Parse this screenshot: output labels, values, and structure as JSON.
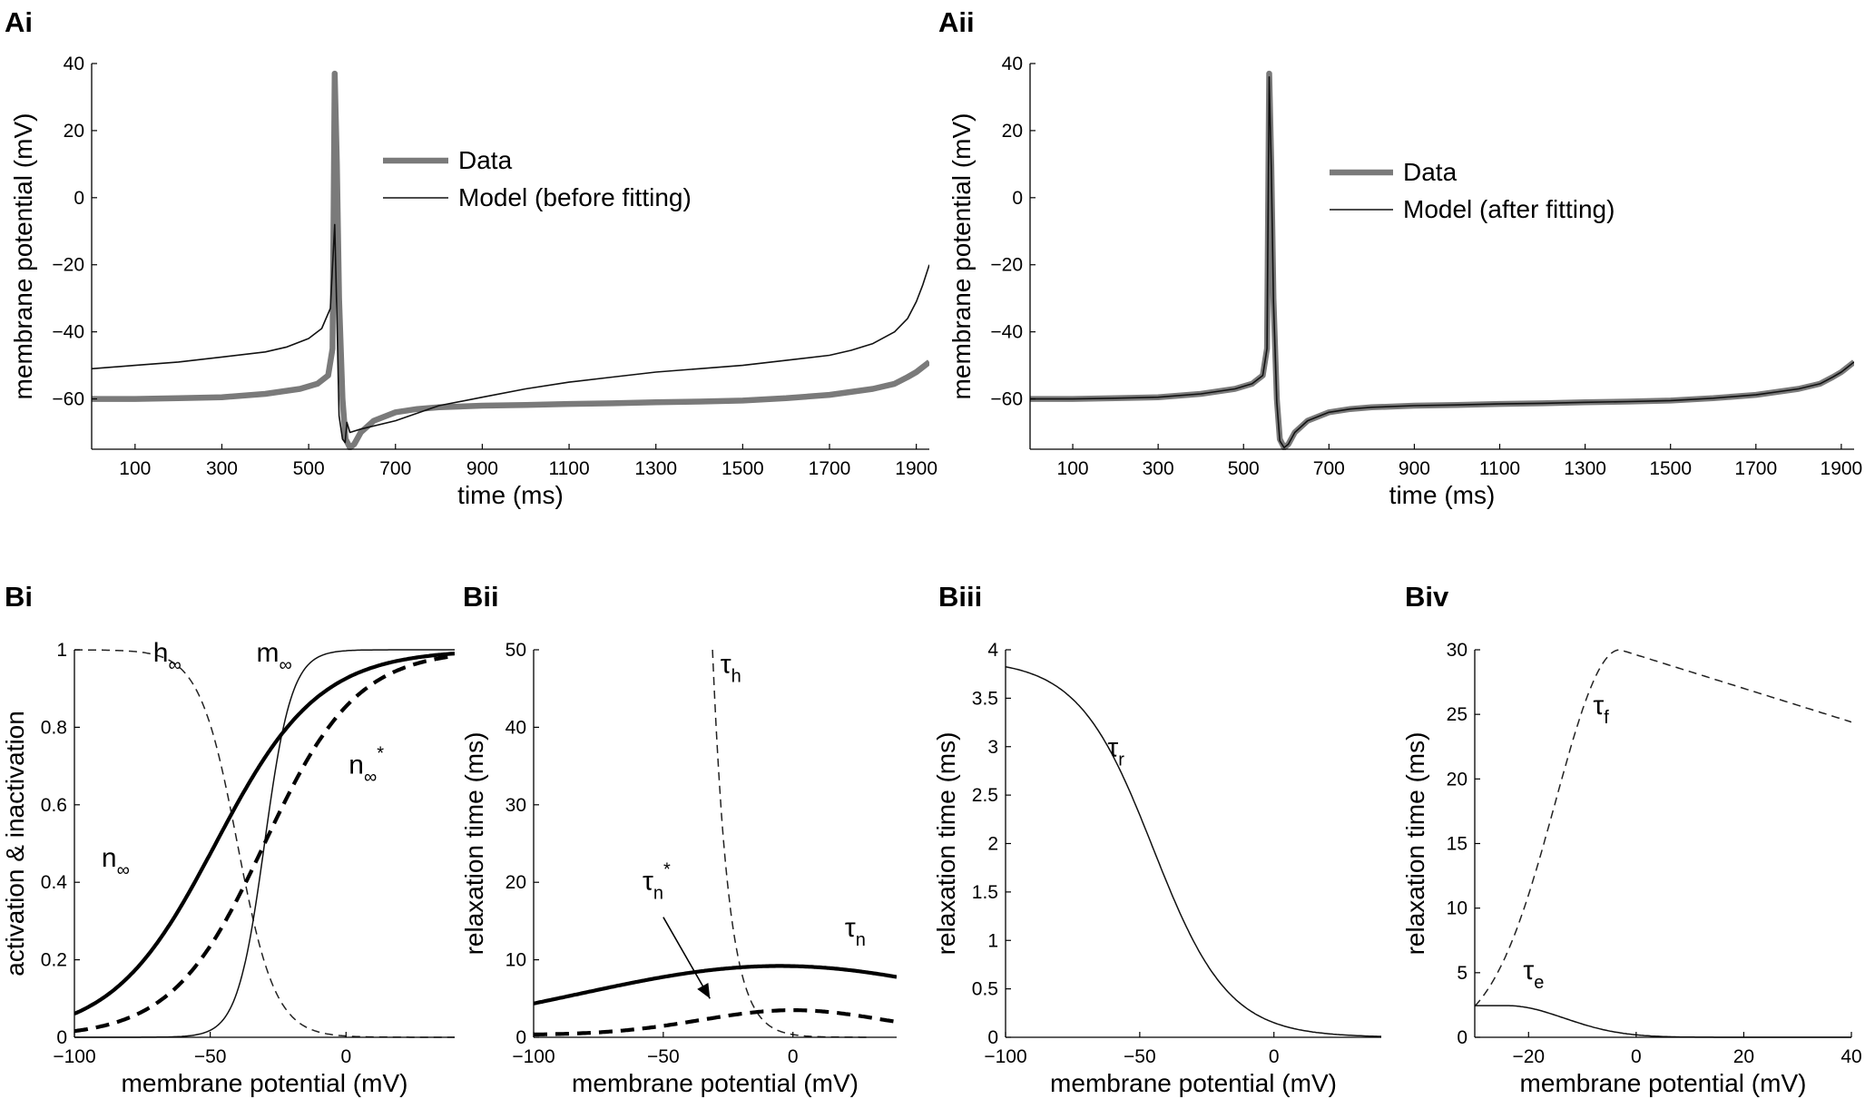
{
  "chart_data": [
    {
      "id": "Ai",
      "panel_label": "Ai",
      "type": "line",
      "xlabel": "time (ms)",
      "ylabel": "membrane potential (mV)",
      "xlim": [
        0,
        1930
      ],
      "ylim": [
        -75,
        40
      ],
      "xticks": [
        100,
        300,
        500,
        700,
        900,
        1100,
        1300,
        1500,
        1700,
        1900
      ],
      "yticks": [
        -60,
        -40,
        -20,
        0,
        20,
        40
      ],
      "legend": [
        "Data",
        "Model (before fitting)"
      ],
      "legend_position": "upper-middle",
      "series": [
        {
          "name": "Data",
          "style": "thick-gray",
          "x": [
            0,
            100,
            200,
            300,
            400,
            480,
            520,
            545,
            555,
            560,
            565,
            570,
            578,
            585,
            595,
            605,
            620,
            650,
            700,
            750,
            800,
            900,
            1000,
            1100,
            1200,
            1300,
            1400,
            1500,
            1600,
            1700,
            1800,
            1850,
            1880,
            1900,
            1915,
            1930
          ],
          "y": [
            -60,
            -60,
            -59.8,
            -59.5,
            -58.5,
            -57,
            -55.5,
            -53,
            -45,
            37,
            10,
            -30,
            -60,
            -72,
            -74.5,
            -73.5,
            -70,
            -66.5,
            -64,
            -63,
            -62.5,
            -62,
            -61.8,
            -61.5,
            -61.3,
            -61,
            -60.8,
            -60.5,
            -59.8,
            -58.8,
            -57,
            -55.5,
            -53.5,
            -52,
            -50.5,
            -49
          ]
        },
        {
          "name": "Model (before fitting)",
          "style": "thin-black",
          "x": [
            0,
            100,
            200,
            300,
            400,
            450,
            500,
            530,
            550,
            560,
            565,
            570,
            578,
            584,
            588,
            595,
            620,
            700,
            800,
            900,
            1000,
            1100,
            1200,
            1300,
            1400,
            1500,
            1600,
            1700,
            1750,
            1800,
            1850,
            1880,
            1900,
            1915,
            1930
          ],
          "y": [
            -51,
            -50,
            -49,
            -47.5,
            -46,
            -44.5,
            -42,
            -39,
            -33,
            -8,
            -35,
            -65,
            -72,
            -73,
            -67,
            -70,
            -69,
            -66.5,
            -62,
            -59.5,
            -57,
            -55,
            -53.5,
            -52,
            -51,
            -50,
            -48.5,
            -47,
            -45.5,
            -43.5,
            -40,
            -36,
            -31,
            -26,
            -20
          ]
        }
      ]
    },
    {
      "id": "Aii",
      "panel_label": "Aii",
      "type": "line",
      "xlabel": "time (ms)",
      "ylabel": "membrane potential (mV)",
      "xlim": [
        0,
        1930
      ],
      "ylim": [
        -75,
        40
      ],
      "xticks": [
        100,
        300,
        500,
        700,
        900,
        1100,
        1300,
        1500,
        1700,
        1900
      ],
      "yticks": [
        -60,
        -40,
        -20,
        0,
        20,
        40
      ],
      "legend": [
        "Data",
        "Model (after fitting)"
      ],
      "legend_position": "upper-middle",
      "series": [
        {
          "name": "Data",
          "style": "thick-gray",
          "x": [
            0,
            100,
            200,
            300,
            400,
            480,
            520,
            545,
            555,
            560,
            565,
            570,
            578,
            585,
            595,
            605,
            620,
            650,
            700,
            750,
            800,
            900,
            1000,
            1100,
            1200,
            1300,
            1400,
            1500,
            1600,
            1700,
            1800,
            1850,
            1880,
            1900,
            1915,
            1930
          ],
          "y": [
            -60,
            -60,
            -59.8,
            -59.5,
            -58.5,
            -57,
            -55.5,
            -53,
            -45,
            37,
            10,
            -30,
            -60,
            -72,
            -74.5,
            -73.5,
            -70,
            -66.5,
            -64,
            -63,
            -62.5,
            -62,
            -61.8,
            -61.5,
            -61.3,
            -61,
            -60.8,
            -60.5,
            -59.8,
            -58.8,
            -57,
            -55.5,
            -53.5,
            -52,
            -50.5,
            -49
          ]
        },
        {
          "name": "Model (after fitting)",
          "style": "thin-black",
          "x": [
            0,
            100,
            200,
            300,
            400,
            480,
            520,
            545,
            555,
            560,
            565,
            570,
            578,
            585,
            595,
            605,
            620,
            650,
            700,
            750,
            800,
            900,
            1000,
            1100,
            1200,
            1300,
            1400,
            1500,
            1600,
            1700,
            1800,
            1850,
            1880,
            1900,
            1915,
            1930
          ],
          "y": [
            -60,
            -60,
            -59.8,
            -59.5,
            -58.5,
            -57,
            -55.5,
            -53,
            -45,
            36,
            9,
            -31,
            -61,
            -72.5,
            -74.5,
            -73.5,
            -70,
            -66.5,
            -64,
            -63,
            -62.5,
            -62,
            -61.8,
            -61.5,
            -61.3,
            -61,
            -60.8,
            -60.5,
            -59.8,
            -58.8,
            -57,
            -55.5,
            -53.5,
            -52,
            -50.5,
            -49
          ]
        }
      ]
    },
    {
      "id": "Bi",
      "panel_label": "Bi",
      "type": "line",
      "xlabel": "membrane potential (mV)",
      "ylabel": "activation & inactivation",
      "xlim": [
        -100,
        40
      ],
      "ylim": [
        0,
        1
      ],
      "xticks": [
        -100,
        -50,
        0
      ],
      "yticks": [
        0,
        0.2,
        0.4,
        0.6,
        0.8,
        1
      ],
      "series": [
        {
          "name": "h∞",
          "style": "thin-dashed",
          "fn": "sigmoid",
          "v_half": -40,
          "k": -7,
          "amp": 1
        },
        {
          "name": "m∞",
          "style": "thin-solid",
          "fn": "sigmoid",
          "v_half": -30,
          "k": 5,
          "amp": 1
        },
        {
          "name": "n∞",
          "style": "thick-solid",
          "fn": "sigmoid",
          "v_half": -48,
          "k": 19,
          "amp": 1
        },
        {
          "name": "n∞*",
          "style": "thick-dashed",
          "fn": "sigmoid",
          "v_half": -30,
          "k": 17,
          "amp": 1
        }
      ],
      "annotations": [
        {
          "text": "h",
          "sub": "∞",
          "sup": "",
          "at": [
            -71,
            0.97
          ]
        },
        {
          "text": "m",
          "sub": "∞",
          "sup": "",
          "at": [
            -33,
            0.97
          ]
        },
        {
          "text": "n",
          "sub": "∞",
          "sup": "*",
          "at": [
            1,
            0.68
          ]
        },
        {
          "text": "n",
          "sub": "∞",
          "sup": "",
          "at": [
            -90,
            0.44
          ]
        }
      ]
    },
    {
      "id": "Bii",
      "panel_label": "Bii",
      "type": "line",
      "xlabel": "membrane potential (mV)",
      "ylabel": "relaxation time (ms)",
      "xlim": [
        -100,
        40
      ],
      "ylim": [
        0,
        50
      ],
      "xticks": [
        -100,
        -50,
        0
      ],
      "yticks": [
        0,
        10,
        20,
        30,
        40,
        50
      ],
      "series": [
        {
          "name": "τh",
          "style": "thin-dashed",
          "fn": "exp_decay",
          "x0": -31,
          "x1": 30,
          "a": 50,
          "b": 0.16
        },
        {
          "name": "τn",
          "style": "thick-solid",
          "fn": "gauss",
          "base": 0,
          "amp": 9.2,
          "mu": -5,
          "sigma": 110
        },
        {
          "name": "τn*",
          "style": "thick-dashed",
          "fn": "gauss",
          "base": 0.3,
          "amp": 3.2,
          "mu": 0,
          "sigma": 50
        }
      ],
      "annotations": [
        {
          "text": "τ",
          "sub": "h",
          "sup": "",
          "at": [
            -28,
            47
          ]
        },
        {
          "text": "τ",
          "sub": "n",
          "sup": "",
          "at": [
            20,
            13
          ]
        },
        {
          "text": "τ",
          "sub": "n",
          "sup": "*",
          "at": [
            -58,
            19
          ]
        }
      ],
      "arrow": {
        "from": [
          -50,
          15.5
        ],
        "to": [
          -32,
          5
        ]
      }
    },
    {
      "id": "Biii",
      "panel_label": "Biii",
      "type": "line",
      "xlabel": "membrane potential (mV)",
      "ylabel": "relaxation time (ms)",
      "xlim": [
        -100,
        40
      ],
      "ylim": [
        0,
        4
      ],
      "xticks": [
        -100,
        -50,
        0
      ],
      "yticks": [
        0,
        0.5,
        1,
        1.5,
        2,
        2.5,
        3,
        3.5,
        4
      ],
      "series": [
        {
          "name": "τr",
          "style": "thin-solid",
          "fn": "sigmoid",
          "v_half": -45,
          "k": -14,
          "amp": 3.9
        }
      ],
      "annotations": [
        {
          "text": "τ",
          "sub": "r",
          "sup": "",
          "at": [
            -62,
            2.9
          ]
        }
      ]
    },
    {
      "id": "Biv",
      "panel_label": "Biv",
      "type": "line",
      "xlabel": "membrane potential (mV)",
      "ylabel": "relaxation time (ms)",
      "xlim": [
        -30,
        40
      ],
      "ylim": [
        0,
        30
      ],
      "xticks": [
        -20,
        0,
        20,
        40
      ],
      "yticks": [
        0,
        5,
        10,
        15,
        20,
        25,
        30
      ],
      "series": [
        {
          "name": "τf",
          "style": "thin-dashed",
          "fn": "skew_peak",
          "peak": 30,
          "mu": -3,
          "s_left": 17,
          "slope_right": 0.13
        },
        {
          "name": "τe",
          "style": "thin-solid",
          "fn": "half_gauss",
          "amp": 2.45,
          "mu": -24,
          "sigma": 15
        }
      ],
      "annotations": [
        {
          "text": "τ",
          "sub": "f",
          "sup": "",
          "at": [
            -8,
            25
          ]
        },
        {
          "text": "τ",
          "sub": "e",
          "sup": "",
          "at": [
            -21,
            4.5
          ]
        }
      ]
    }
  ]
}
